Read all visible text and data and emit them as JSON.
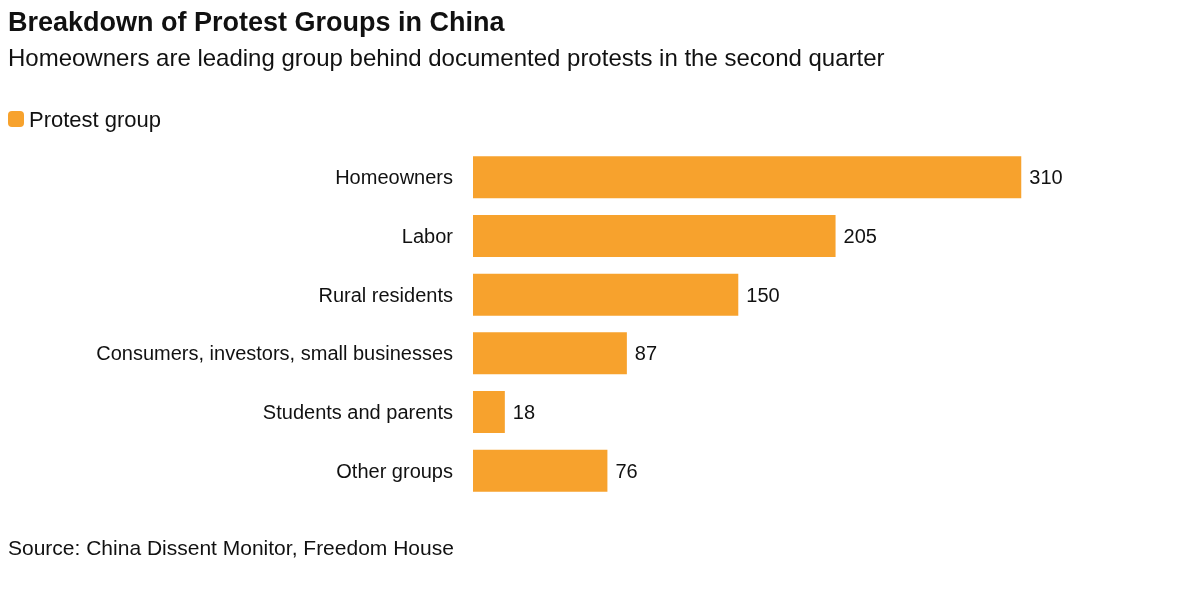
{
  "chart_data": {
    "type": "bar",
    "orientation": "horizontal",
    "title": "Breakdown of Protest Groups in China",
    "subtitle": "Homeowners are leading group behind documented protests in the second quarter",
    "categories": [
      "Homeowners",
      "Labor",
      "Rural residents",
      "Consumers, investors, small businesses",
      "Students and parents",
      "Other groups"
    ],
    "series": [
      {
        "name": "Protest group",
        "color": "#f7a22d",
        "values": [
          310,
          205,
          150,
          87,
          18,
          76
        ]
      }
    ],
    "data_labels": true,
    "legend": "top left",
    "annotations": [
      "Source: China Dissent Monitor, Freedom House"
    ]
  }
}
